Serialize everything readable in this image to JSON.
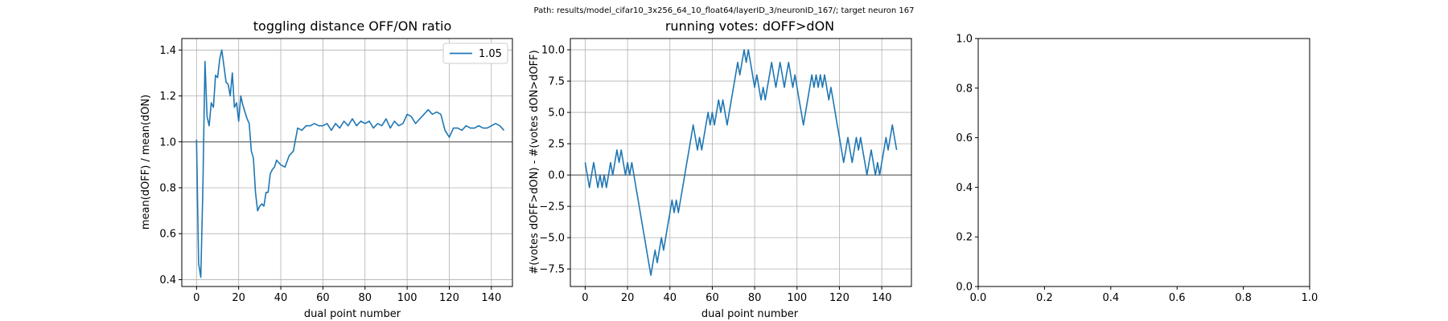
{
  "figure": {
    "suptitle": "Path: results/model_cifar10_3x256_64_10_float64/layerID_3/neuronID_167/; target neuron 167"
  },
  "colors": {
    "series": "#1f77b4",
    "hline": "#808080",
    "grid": "#b0b0b0"
  },
  "chart_data": [
    {
      "type": "line",
      "title": "toggling distance OFF/ON ratio",
      "xlabel": "dual point number",
      "ylabel": "mean(dOFF) / mean(dON)",
      "xlim": [
        -7,
        150
      ],
      "ylim": [
        0.37,
        1.45
      ],
      "xticks": [
        0,
        20,
        40,
        60,
        80,
        100,
        120,
        140
      ],
      "xtick_labels": [
        "0",
        "20",
        "40",
        "60",
        "80",
        "100",
        "120",
        "140"
      ],
      "yticks": [
        0.4,
        0.6,
        0.8,
        1.0,
        1.2,
        1.4
      ],
      "ytick_labels": [
        "0.4",
        "0.6",
        "0.8",
        "1.0",
        "1.2",
        "1.4"
      ],
      "grid": true,
      "legend": {
        "position": "top-right",
        "entries": [
          "1.05"
        ]
      },
      "hline": 1.0,
      "series": [
        {
          "name": "1.05",
          "x": [
            0,
            1,
            2,
            3,
            4,
            5,
            6,
            7,
            8,
            9,
            10,
            11,
            12,
            13,
            14,
            15,
            16,
            17,
            18,
            19,
            20,
            21,
            22,
            23,
            24,
            25,
            26,
            27,
            28,
            29,
            30,
            31,
            32,
            33,
            34,
            35,
            36,
            37,
            38,
            39,
            40,
            42,
            44,
            46,
            48,
            50,
            52,
            54,
            56,
            58,
            60,
            62,
            64,
            66,
            68,
            70,
            72,
            74,
            76,
            78,
            80,
            82,
            84,
            86,
            88,
            90,
            92,
            94,
            96,
            98,
            100,
            102,
            104,
            106,
            108,
            110,
            112,
            114,
            116,
            118,
            120,
            122,
            124,
            126,
            128,
            130,
            132,
            134,
            136,
            138,
            140,
            142,
            144,
            146
          ],
          "y": [
            1.01,
            0.47,
            0.41,
            0.8,
            1.35,
            1.11,
            1.07,
            1.17,
            1.15,
            1.29,
            1.28,
            1.36,
            1.4,
            1.33,
            1.26,
            1.25,
            1.2,
            1.3,
            1.15,
            1.17,
            1.09,
            1.2,
            1.16,
            1.13,
            1.1,
            1.08,
            0.96,
            0.93,
            0.78,
            0.7,
            0.72,
            0.73,
            0.72,
            0.78,
            0.78,
            0.86,
            0.88,
            0.89,
            0.92,
            0.91,
            0.9,
            0.89,
            0.94,
            0.96,
            1.06,
            1.05,
            1.07,
            1.07,
            1.08,
            1.07,
            1.07,
            1.08,
            1.05,
            1.08,
            1.06,
            1.09,
            1.07,
            1.1,
            1.07,
            1.09,
            1.08,
            1.09,
            1.06,
            1.08,
            1.07,
            1.1,
            1.06,
            1.09,
            1.07,
            1.08,
            1.12,
            1.11,
            1.08,
            1.1,
            1.12,
            1.14,
            1.12,
            1.13,
            1.12,
            1.05,
            1.02,
            1.06,
            1.06,
            1.05,
            1.07,
            1.06,
            1.06,
            1.07,
            1.06,
            1.06,
            1.07,
            1.08,
            1.07,
            1.05
          ]
        }
      ]
    },
    {
      "type": "line",
      "title": "running votes: dOFF>dON",
      "xlabel": "dual point number",
      "ylabel": "#(votes dOFF>dON) - #(votes dON>dOFF)",
      "xlim": [
        -7,
        154
      ],
      "ylim": [
        -8.9,
        10.9
      ],
      "xticks": [
        0,
        20,
        40,
        60,
        80,
        100,
        120,
        140
      ],
      "xtick_labels": [
        "0",
        "20",
        "40",
        "60",
        "80",
        "100",
        "120",
        "140"
      ],
      "yticks": [
        -7.5,
        -5.0,
        -2.5,
        0.0,
        2.5,
        5.0,
        7.5,
        10.0
      ],
      "ytick_labels": [
        "−7.5",
        "−5.0",
        "−2.5",
        "0.0",
        "2.5",
        "5.0",
        "7.5",
        "10.0"
      ],
      "grid": true,
      "hline": 0.0,
      "series": [
        {
          "name": "",
          "x": [
            0,
            1,
            2,
            3,
            4,
            5,
            6,
            7,
            8,
            9,
            10,
            11,
            12,
            13,
            14,
            15,
            16,
            17,
            18,
            19,
            20,
            21,
            22,
            23,
            24,
            25,
            26,
            27,
            28,
            29,
            30,
            31,
            32,
            33,
            34,
            35,
            36,
            37,
            38,
            39,
            40,
            41,
            42,
            43,
            44,
            45,
            46,
            47,
            48,
            49,
            50,
            51,
            52,
            53,
            54,
            55,
            56,
            57,
            58,
            59,
            60,
            61,
            62,
            63,
            64,
            65,
            66,
            67,
            68,
            69,
            70,
            71,
            72,
            73,
            74,
            75,
            76,
            77,
            78,
            79,
            80,
            81,
            82,
            83,
            84,
            85,
            86,
            87,
            88,
            89,
            90,
            91,
            92,
            93,
            94,
            95,
            96,
            97,
            98,
            99,
            100,
            101,
            102,
            103,
            104,
            105,
            106,
            107,
            108,
            109,
            110,
            111,
            112,
            113,
            114,
            115,
            116,
            117,
            118,
            119,
            120,
            121,
            122,
            123,
            124,
            125,
            126,
            127,
            128,
            129,
            130,
            131,
            132,
            133,
            134,
            135,
            136,
            137,
            138,
            139,
            140,
            141,
            142,
            143,
            144,
            145,
            146,
            147
          ],
          "y": [
            1,
            0,
            -1,
            0,
            1,
            0,
            -1,
            0,
            -1,
            0,
            -1,
            0,
            1,
            0,
            1,
            2,
            1,
            2,
            1,
            0,
            1,
            0,
            1,
            0,
            -1,
            -2,
            -3,
            -4,
            -5,
            -6,
            -7,
            -8,
            -7,
            -6,
            -7,
            -6,
            -5,
            -6,
            -5,
            -4,
            -3,
            -2,
            -3,
            -2,
            -3,
            -2,
            -1,
            0,
            1,
            2,
            3,
            4,
            3,
            2,
            3,
            2,
            3,
            4,
            5,
            4,
            5,
            4,
            5,
            6,
            5,
            6,
            5,
            4,
            5,
            6,
            7,
            8,
            9,
            8,
            9,
            10,
            9,
            10,
            9,
            8,
            7,
            8,
            7,
            6,
            7,
            6,
            7,
            8,
            9,
            8,
            7,
            8,
            9,
            8,
            7,
            8,
            9,
            8,
            7,
            8,
            7,
            6,
            5,
            4,
            5,
            6,
            7,
            8,
            7,
            8,
            7,
            8,
            7,
            8,
            7,
            6,
            7,
            6,
            5,
            4,
            3,
            2,
            1,
            2,
            3,
            2,
            1,
            2,
            3,
            2,
            3,
            2,
            1,
            0,
            1,
            2,
            1,
            0,
            1,
            0,
            1,
            2,
            3,
            2,
            3,
            4,
            3,
            2
          ]
        }
      ]
    },
    {
      "type": "line",
      "title": "",
      "xlabel": "",
      "ylabel": "",
      "xlim": [
        0,
        1
      ],
      "ylim": [
        0,
        1
      ],
      "xticks": [
        0,
        0.2,
        0.4,
        0.6,
        0.8,
        1.0
      ],
      "xtick_labels": [
        "0.0",
        "0.2",
        "0.4",
        "0.6",
        "0.8",
        "1.0"
      ],
      "yticks": [
        0,
        0.2,
        0.4,
        0.6,
        0.8,
        1.0
      ],
      "ytick_labels": [
        "0.0",
        "0.2",
        "0.4",
        "0.6",
        "0.8",
        "1.0"
      ],
      "grid": false,
      "series": []
    }
  ]
}
